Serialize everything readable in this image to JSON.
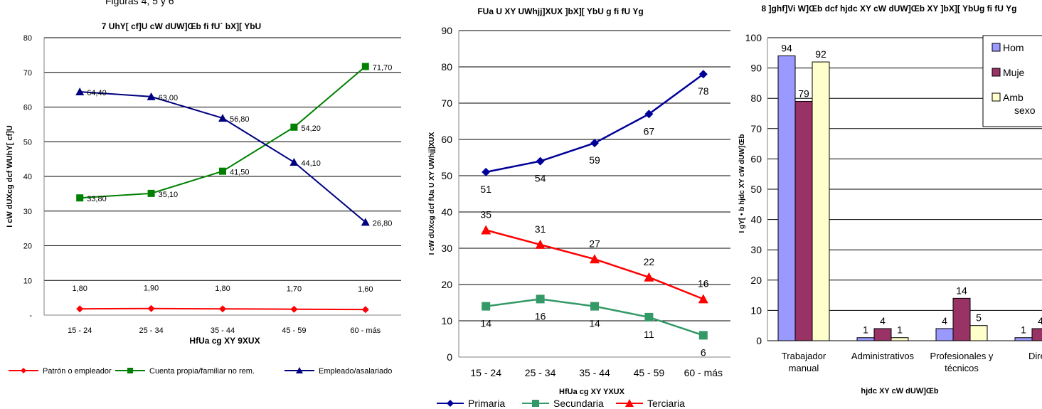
{
  "page": {
    "caption": "Figuras 4, 5 y 6"
  },
  "chart_data": [
    {
      "type": "line",
      "title": "7 UhY[ cf]U cW dUW]Œb fi fU`  bX]\u001f[ YbU",
      "xlabel": "HfUa cg XY 9XUX",
      "ylabel": "I cW dUXcg dcf WUhY[ cf]U",
      "categories": [
        "15 - 24",
        "25 - 34",
        "35 - 44",
        "45 - 59",
        "60 - más"
      ],
      "ylim": [
        0,
        80
      ],
      "yticks": [
        "-",
        "10",
        "20",
        "30",
        "40",
        "50",
        "60",
        "70",
        "80"
      ],
      "grid": true,
      "legend_position": "bottom",
      "series": [
        {
          "name": "Patrón o empleador",
          "color": "#ff0000",
          "marker": "diamond",
          "values": [
            1.8,
            1.9,
            1.8,
            1.7,
            1.6
          ],
          "labels": [
            "1,80",
            "1,90",
            "1,80",
            "1,70",
            "1,60"
          ]
        },
        {
          "name": "Cuenta propia/familiar no rem.",
          "color": "#008000",
          "marker": "square",
          "values": [
            33.8,
            35.1,
            41.5,
            54.2,
            71.7
          ],
          "labels": [
            "33,80",
            "35,10",
            "41,50",
            "54,20",
            "71,70"
          ]
        },
        {
          "name": "Empleado/asalariado",
          "color": "#000080",
          "marker": "triangle",
          "values": [
            64.4,
            63.0,
            56.8,
            44.1,
            26.8
          ],
          "labels": [
            "64,40",
            "63,00",
            "56,80",
            "44,10",
            "26,80"
          ]
        }
      ]
    },
    {
      "type": "line",
      "title": "FUa U XY UWhjj]XUX ]bX]\u001f[ YbU g fi fU Yg",
      "xlabel": "HfUa cg XY YXUX",
      "ylabel": "I cW dUXcg dcf fUa U XY UWhjj]XUX",
      "categories": [
        "15 - 24",
        "25 - 34",
        "35 - 44",
        "45 - 59",
        "60 - más"
      ],
      "ylim": [
        0,
        90
      ],
      "yticks": [
        "0",
        "10",
        "20",
        "30",
        "40",
        "50",
        "60",
        "70",
        "80",
        "90"
      ],
      "grid": true,
      "legend_position": "bottom",
      "series": [
        {
          "name": "Primaria",
          "color": "#000099",
          "marker": "diamond",
          "values": [
            51,
            54,
            59,
            67,
            78
          ],
          "labels": [
            "51",
            "54",
            "59",
            "67",
            "78"
          ]
        },
        {
          "name": "Secundaria",
          "color": "#339966",
          "marker": "square",
          "values": [
            14,
            16,
            14,
            11,
            6
          ],
          "labels": [
            "14",
            "16",
            "14",
            "11",
            "6"
          ]
        },
        {
          "name": "Terciaria",
          "color": "#ff0000",
          "marker": "triangle",
          "values": [
            35,
            31,
            27,
            22,
            16
          ],
          "labels": [
            "35",
            "31",
            "27",
            "22",
            "16"
          ]
        }
      ]
    },
    {
      "type": "bar",
      "title": "8 ]ghf]Vi W]Œb dcf hjdc XY cW dUW]Œb XY  ]bX]\u001f[ YbUg fi fU Yg",
      "xlabel": "hjdc XY cW dUW]Œb",
      "ylabel": "I gY[ • b hjdc XY cW dUW]Œb",
      "categories": [
        "Trabajador manual",
        "Administrativos",
        "Profesionales y técnicos",
        "Direct"
      ],
      "ylim": [
        0,
        100
      ],
      "yticks": [
        "0",
        "10",
        "20",
        "30",
        "40",
        "50",
        "60",
        "70",
        "80",
        "90",
        "100"
      ],
      "grid": true,
      "legend_position": "right",
      "series": [
        {
          "name": "Hom",
          "color": "#9999ff",
          "values": [
            94,
            1,
            4,
            1
          ],
          "labels": [
            "94",
            "1",
            "4",
            "1"
          ]
        },
        {
          "name": "Muje",
          "color": "#993366",
          "values": [
            79,
            4,
            14,
            4
          ],
          "labels": [
            "79",
            "4",
            "14",
            "4"
          ]
        },
        {
          "name": "Amb sexo",
          "color": "#ffffcc",
          "values": [
            92,
            1,
            5,
            null
          ],
          "labels": [
            "92",
            "1",
            "5",
            ""
          ]
        }
      ]
    }
  ]
}
